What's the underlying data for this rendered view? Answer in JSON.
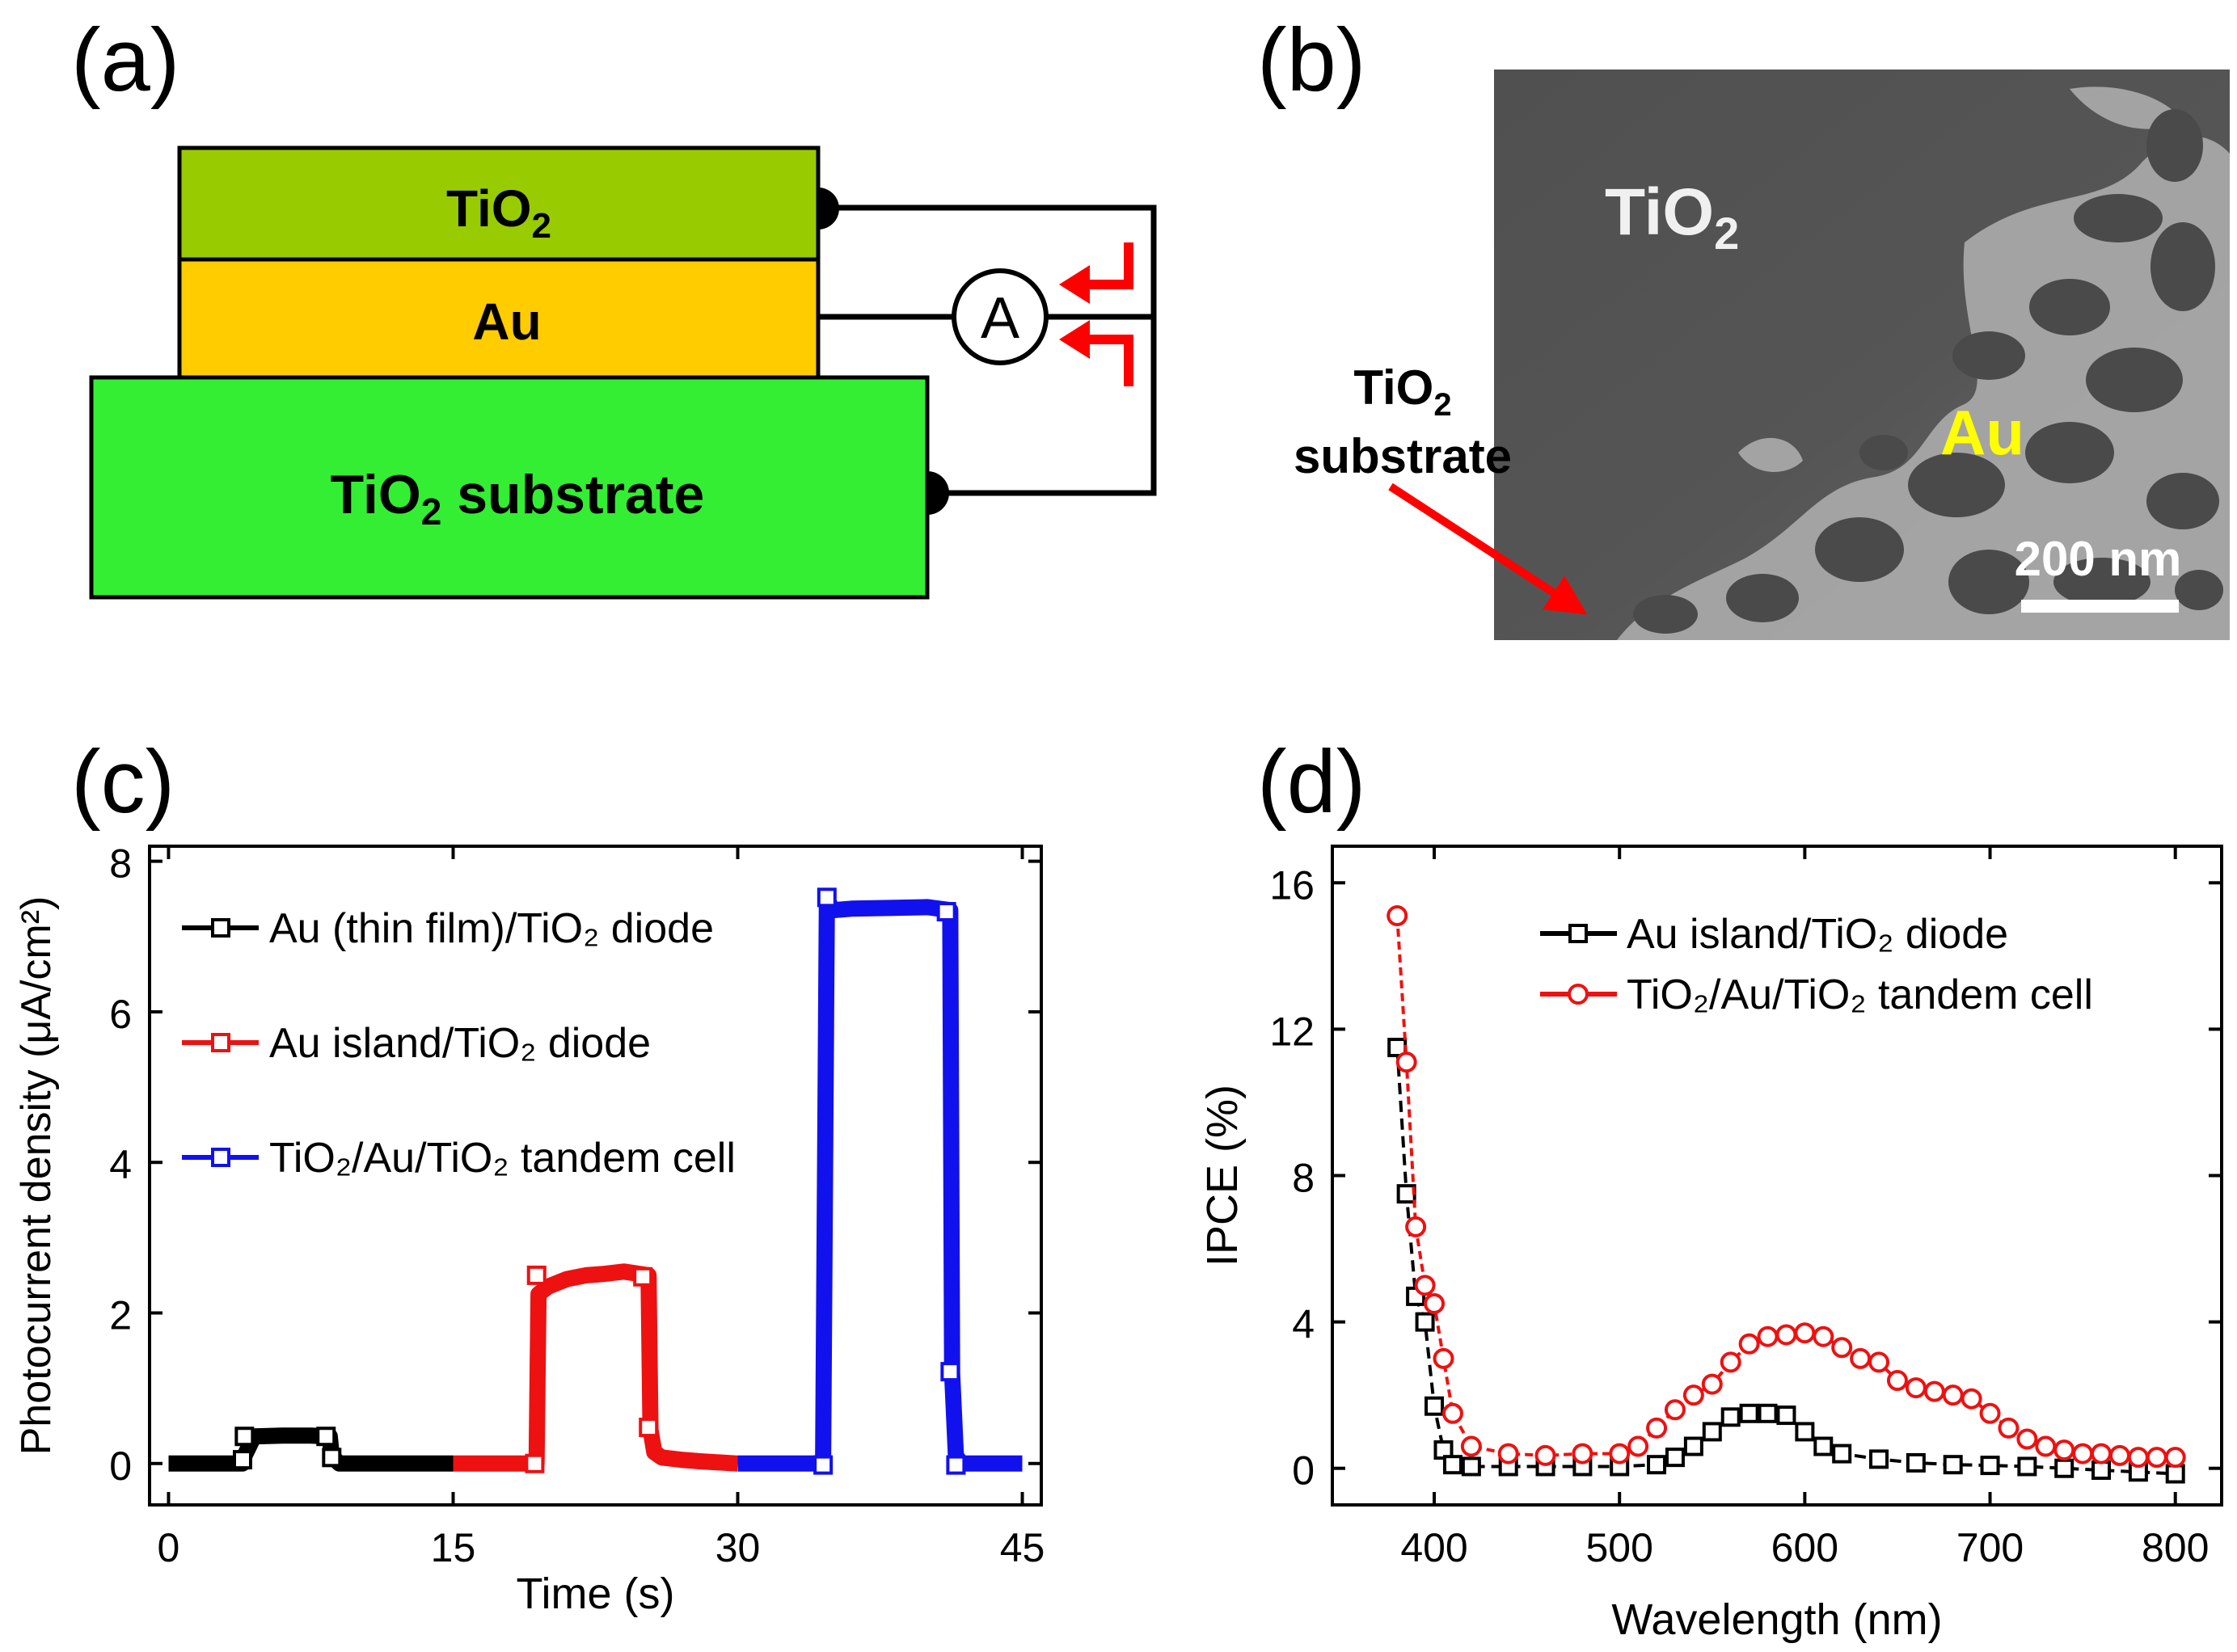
{
  "panels": {
    "a": {
      "label": "(a)"
    },
    "b": {
      "label": "(b)"
    },
    "c": {
      "label": "(c)"
    },
    "d": {
      "label": "(d)"
    }
  },
  "schematic": {
    "top_layer": {
      "base": "TiO",
      "sub": "2",
      "color": "#99cc00"
    },
    "middle_layer": {
      "text": "Au",
      "color": "#ffcc00"
    },
    "substrate": {
      "base": "TiO",
      "sub": "2",
      "rest": " substrate",
      "color": "#33ee33"
    },
    "ammeter": "A",
    "arrow_color": "#ff0000"
  },
  "sem": {
    "tio2_label": {
      "base": "TiO",
      "sub": "2"
    },
    "au_label": "Au",
    "substrate_label": {
      "base": "TiO",
      "sub": "2",
      "line2": "substrate"
    },
    "scale_bar": "200 nm",
    "au_color": "#ffff00"
  },
  "chart_data": [
    {
      "id": "c",
      "type": "line",
      "xlabel": "Time (s)",
      "ylabel": "Photocurrent density (μA/cm²)",
      "xlim": [
        -1,
        46
      ],
      "ylim": [
        -0.55,
        8.2
      ],
      "xticks": [
        "0",
        "15",
        "30",
        "45"
      ],
      "xtick_values": [
        0,
        15,
        30,
        45
      ],
      "yticks": [
        "0",
        "2",
        "4",
        "6",
        "8"
      ],
      "ytick_values": [
        0,
        2,
        4,
        6,
        8
      ],
      "series": [
        {
          "name": "Au (thin film)/TiO₂ diode",
          "color": "#000000",
          "x": [
            0,
            3.9,
            4.0,
            4.5,
            6,
            7.5,
            8.5,
            8.6,
            9,
            10,
            12,
            15
          ],
          "y": [
            0,
            0,
            0.1,
            0.36,
            0.37,
            0.37,
            0.36,
            0.1,
            0,
            0,
            0,
            0
          ],
          "markers": [
            [
              3.9,
              0.05
            ],
            [
              4.0,
              0.36
            ],
            [
              8.3,
              0.36
            ],
            [
              8.6,
              0.08
            ]
          ]
        },
        {
          "name": "Au island/TiO₂ diode",
          "color": "#ee1111",
          "x": [
            15,
            17,
            19.4,
            19.5,
            20,
            21,
            22,
            23,
            24,
            25.3,
            25.4,
            25.6,
            26,
            27,
            28,
            30
          ],
          "y": [
            0,
            0,
            0,
            2.25,
            2.35,
            2.45,
            2.5,
            2.52,
            2.55,
            2.5,
            0.45,
            0.15,
            0.08,
            0.05,
            0.03,
            0
          ],
          "markers": [
            [
              19.3,
              0.0
            ],
            [
              19.4,
              2.5
            ],
            [
              25.0,
              2.48
            ],
            [
              25.3,
              0.48
            ]
          ]
        },
        {
          "name": "TiO₂/Au/TiO₂ tandem cell",
          "color": "#1111ee",
          "x": [
            30,
            32,
            34.5,
            34.7,
            35,
            36,
            38,
            40,
            41.2,
            41.3,
            41.5,
            41.8,
            45
          ],
          "y": [
            0,
            0,
            0,
            7.5,
            7.35,
            7.37,
            7.38,
            7.39,
            7.35,
            1.2,
            0.1,
            0,
            0
          ],
          "markers": [
            [
              34.5,
              -0.02
            ],
            [
              34.7,
              7.52
            ],
            [
              41.0,
              7.33
            ],
            [
              41.2,
              1.22
            ],
            [
              41.5,
              -0.02
            ]
          ]
        }
      ]
    },
    {
      "id": "d",
      "type": "line",
      "xlabel": "Wavelength (nm)",
      "ylabel": "IPCE (%)",
      "xlim": [
        345,
        825
      ],
      "ylim": [
        -1,
        17
      ],
      "xticks": [
        "400",
        "500",
        "600",
        "700",
        "800"
      ],
      "xtick_values": [
        400,
        500,
        600,
        700,
        800
      ],
      "yticks": [
        "0",
        "4",
        "8",
        "12",
        "16"
      ],
      "ytick_values": [
        0,
        4,
        8,
        12,
        16
      ],
      "series": [
        {
          "name": "Au island/TiO₂ diode",
          "color": "#000000",
          "marker": "square",
          "x": [
            380,
            385,
            390,
            395,
            400,
            405,
            410,
            420,
            440,
            460,
            480,
            500,
            520,
            530,
            540,
            550,
            560,
            570,
            580,
            590,
            600,
            610,
            620,
            640,
            660,
            680,
            700,
            720,
            740,
            760,
            780,
            800
          ],
          "y": [
            11.5,
            7.5,
            4.7,
            4.0,
            1.7,
            0.5,
            0.1,
            0.05,
            0.05,
            0.05,
            0.05,
            0.05,
            0.1,
            0.3,
            0.6,
            1.0,
            1.4,
            1.5,
            1.5,
            1.45,
            1.0,
            0.6,
            0.4,
            0.25,
            0.15,
            0.1,
            0.08,
            0.05,
            0.0,
            -0.05,
            -0.1,
            -0.15
          ]
        },
        {
          "name": "TiO₂/Au/TiO₂ tandem cell",
          "color": "#ee1111",
          "marker": "circle",
          "x": [
            380,
            385,
            390,
            395,
            400,
            405,
            410,
            420,
            440,
            460,
            480,
            500,
            510,
            520,
            530,
            540,
            550,
            560,
            570,
            580,
            590,
            600,
            610,
            620,
            630,
            640,
            650,
            660,
            670,
            680,
            690,
            700,
            710,
            720,
            730,
            740,
            750,
            760,
            770,
            780,
            790,
            800
          ],
          "y": [
            15.1,
            11.1,
            6.6,
            5.0,
            4.5,
            3.0,
            1.5,
            0.6,
            0.4,
            0.35,
            0.4,
            0.4,
            0.6,
            1.1,
            1.6,
            2.0,
            2.3,
            2.9,
            3.4,
            3.6,
            3.65,
            3.7,
            3.6,
            3.3,
            3.0,
            2.9,
            2.4,
            2.2,
            2.1,
            2.0,
            1.9,
            1.5,
            1.1,
            0.8,
            0.6,
            0.5,
            0.4,
            0.4,
            0.35,
            0.3,
            0.3,
            0.3
          ]
        }
      ]
    }
  ]
}
